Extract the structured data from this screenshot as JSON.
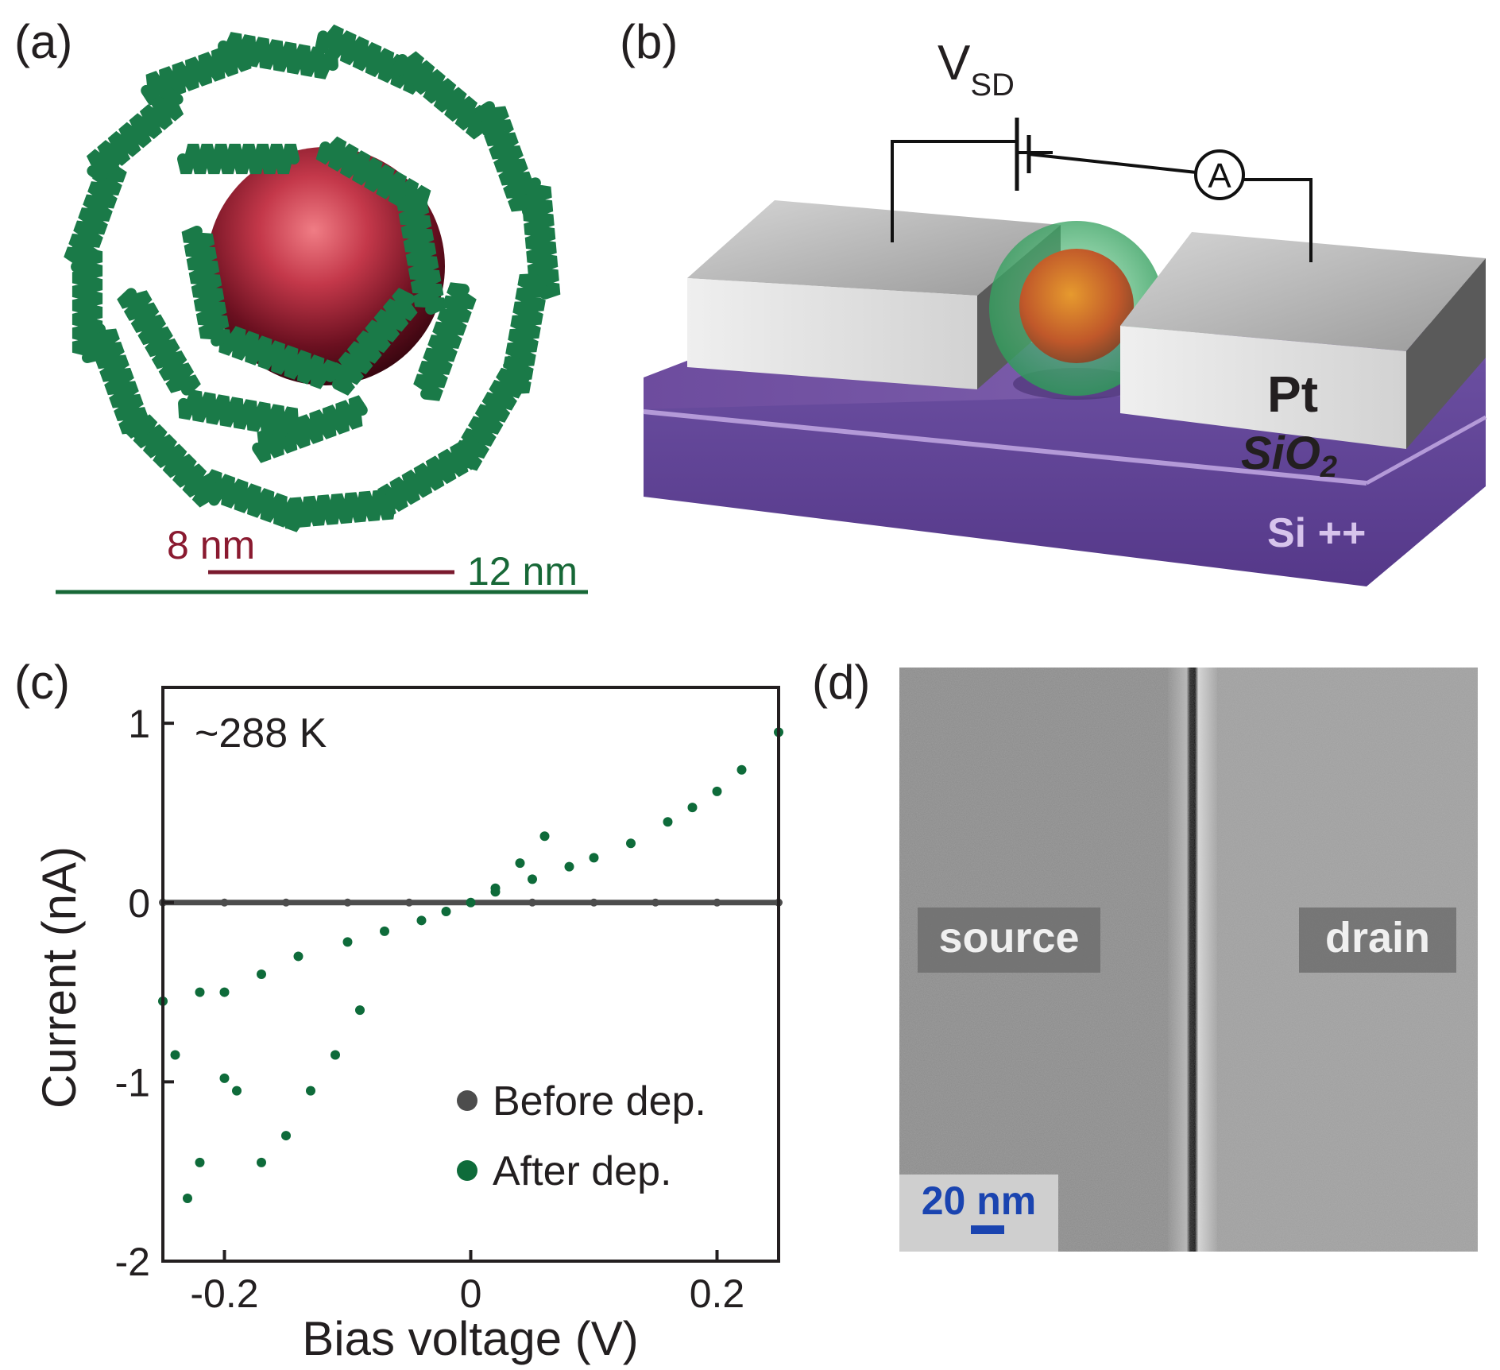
{
  "panels": {
    "a": {
      "label": "(a)",
      "inner_scale_label": "8 nm",
      "outer_scale_label": "12 nm",
      "colors": {
        "shell": "#1a7a48",
        "core": "#6b1020",
        "inner_bar": "#7a1a2e",
        "outer_bar": "#176837"
      }
    },
    "b": {
      "label": "(b)",
      "voltage_label": "V",
      "voltage_subscript": "SD",
      "ammeter_label": "A",
      "electrode_label": "Pt",
      "oxide_label": "SiO",
      "oxide_subscript": "2",
      "substrate_label": "Si ++",
      "colors": {
        "electrode": "#c9c9c9",
        "oxide": "#7a5ea8",
        "substrate": "#5a3d93",
        "particle_shell": "#47b872",
        "particle_core": "#d9822b"
      }
    },
    "c": {
      "label": "(c)",
      "temperature_label": "~288 K",
      "legend": [
        {
          "label": "Before dep.",
          "color": "#4d4d4d"
        },
        {
          "label": "After dep.",
          "color": "#0e6b3a"
        }
      ]
    },
    "d": {
      "label": "(d)",
      "source_label": "source",
      "drain_label": "drain",
      "scale_label": "20 nm",
      "colors": {
        "scale": "#1a44b0",
        "background": "#8c8c8c"
      }
    }
  },
  "chart_data": {
    "type": "scatter",
    "xlabel": "Bias voltage (V)",
    "ylabel": "Current (nA)",
    "xlim": [
      -0.25,
      0.25
    ],
    "ylim": [
      -2,
      1.2
    ],
    "xticks": [
      -0.2,
      0,
      0.2
    ],
    "xtick_labels": [
      "-0.2",
      "0",
      "0.2"
    ],
    "yticks": [
      -2,
      -1,
      0,
      1
    ],
    "ytick_labels": [
      "-2",
      "-1",
      "0",
      "1"
    ],
    "grid": false,
    "legend_position": "bottom-right",
    "series": [
      {
        "name": "Before dep.",
        "color": "#4d4d4d",
        "x": [
          -0.25,
          -0.2,
          -0.15,
          -0.1,
          -0.05,
          0,
          0.05,
          0.1,
          0.15,
          0.2,
          0.25
        ],
        "y": [
          0,
          0,
          0,
          0,
          0,
          0,
          0,
          0,
          0,
          0,
          0
        ]
      },
      {
        "name": "After dep.",
        "color": "#0e6b3a",
        "x": [
          -0.25,
          -0.22,
          -0.2,
          -0.17,
          -0.14,
          -0.1,
          -0.07,
          -0.04,
          -0.02,
          0,
          0.02,
          0.05,
          0.08,
          0.1,
          0.13,
          0.16,
          0.18,
          0.2,
          0.22,
          0.25,
          0.06,
          0.04,
          0.02,
          -0.09,
          -0.11,
          -0.13,
          -0.15,
          -0.17,
          -0.19,
          -0.2,
          -0.22,
          -0.23,
          -0.24
        ],
        "y": [
          -0.55,
          -0.5,
          -0.5,
          -0.4,
          -0.3,
          -0.22,
          -0.16,
          -0.1,
          -0.05,
          0,
          0.06,
          0.13,
          0.2,
          0.25,
          0.33,
          0.45,
          0.53,
          0.62,
          0.74,
          0.95,
          0.37,
          0.22,
          0.08,
          -0.6,
          -0.85,
          -1.05,
          -1.3,
          -1.45,
          -1.05,
          -0.98,
          -1.45,
          -1.65,
          -0.85
        ]
      }
    ]
  }
}
